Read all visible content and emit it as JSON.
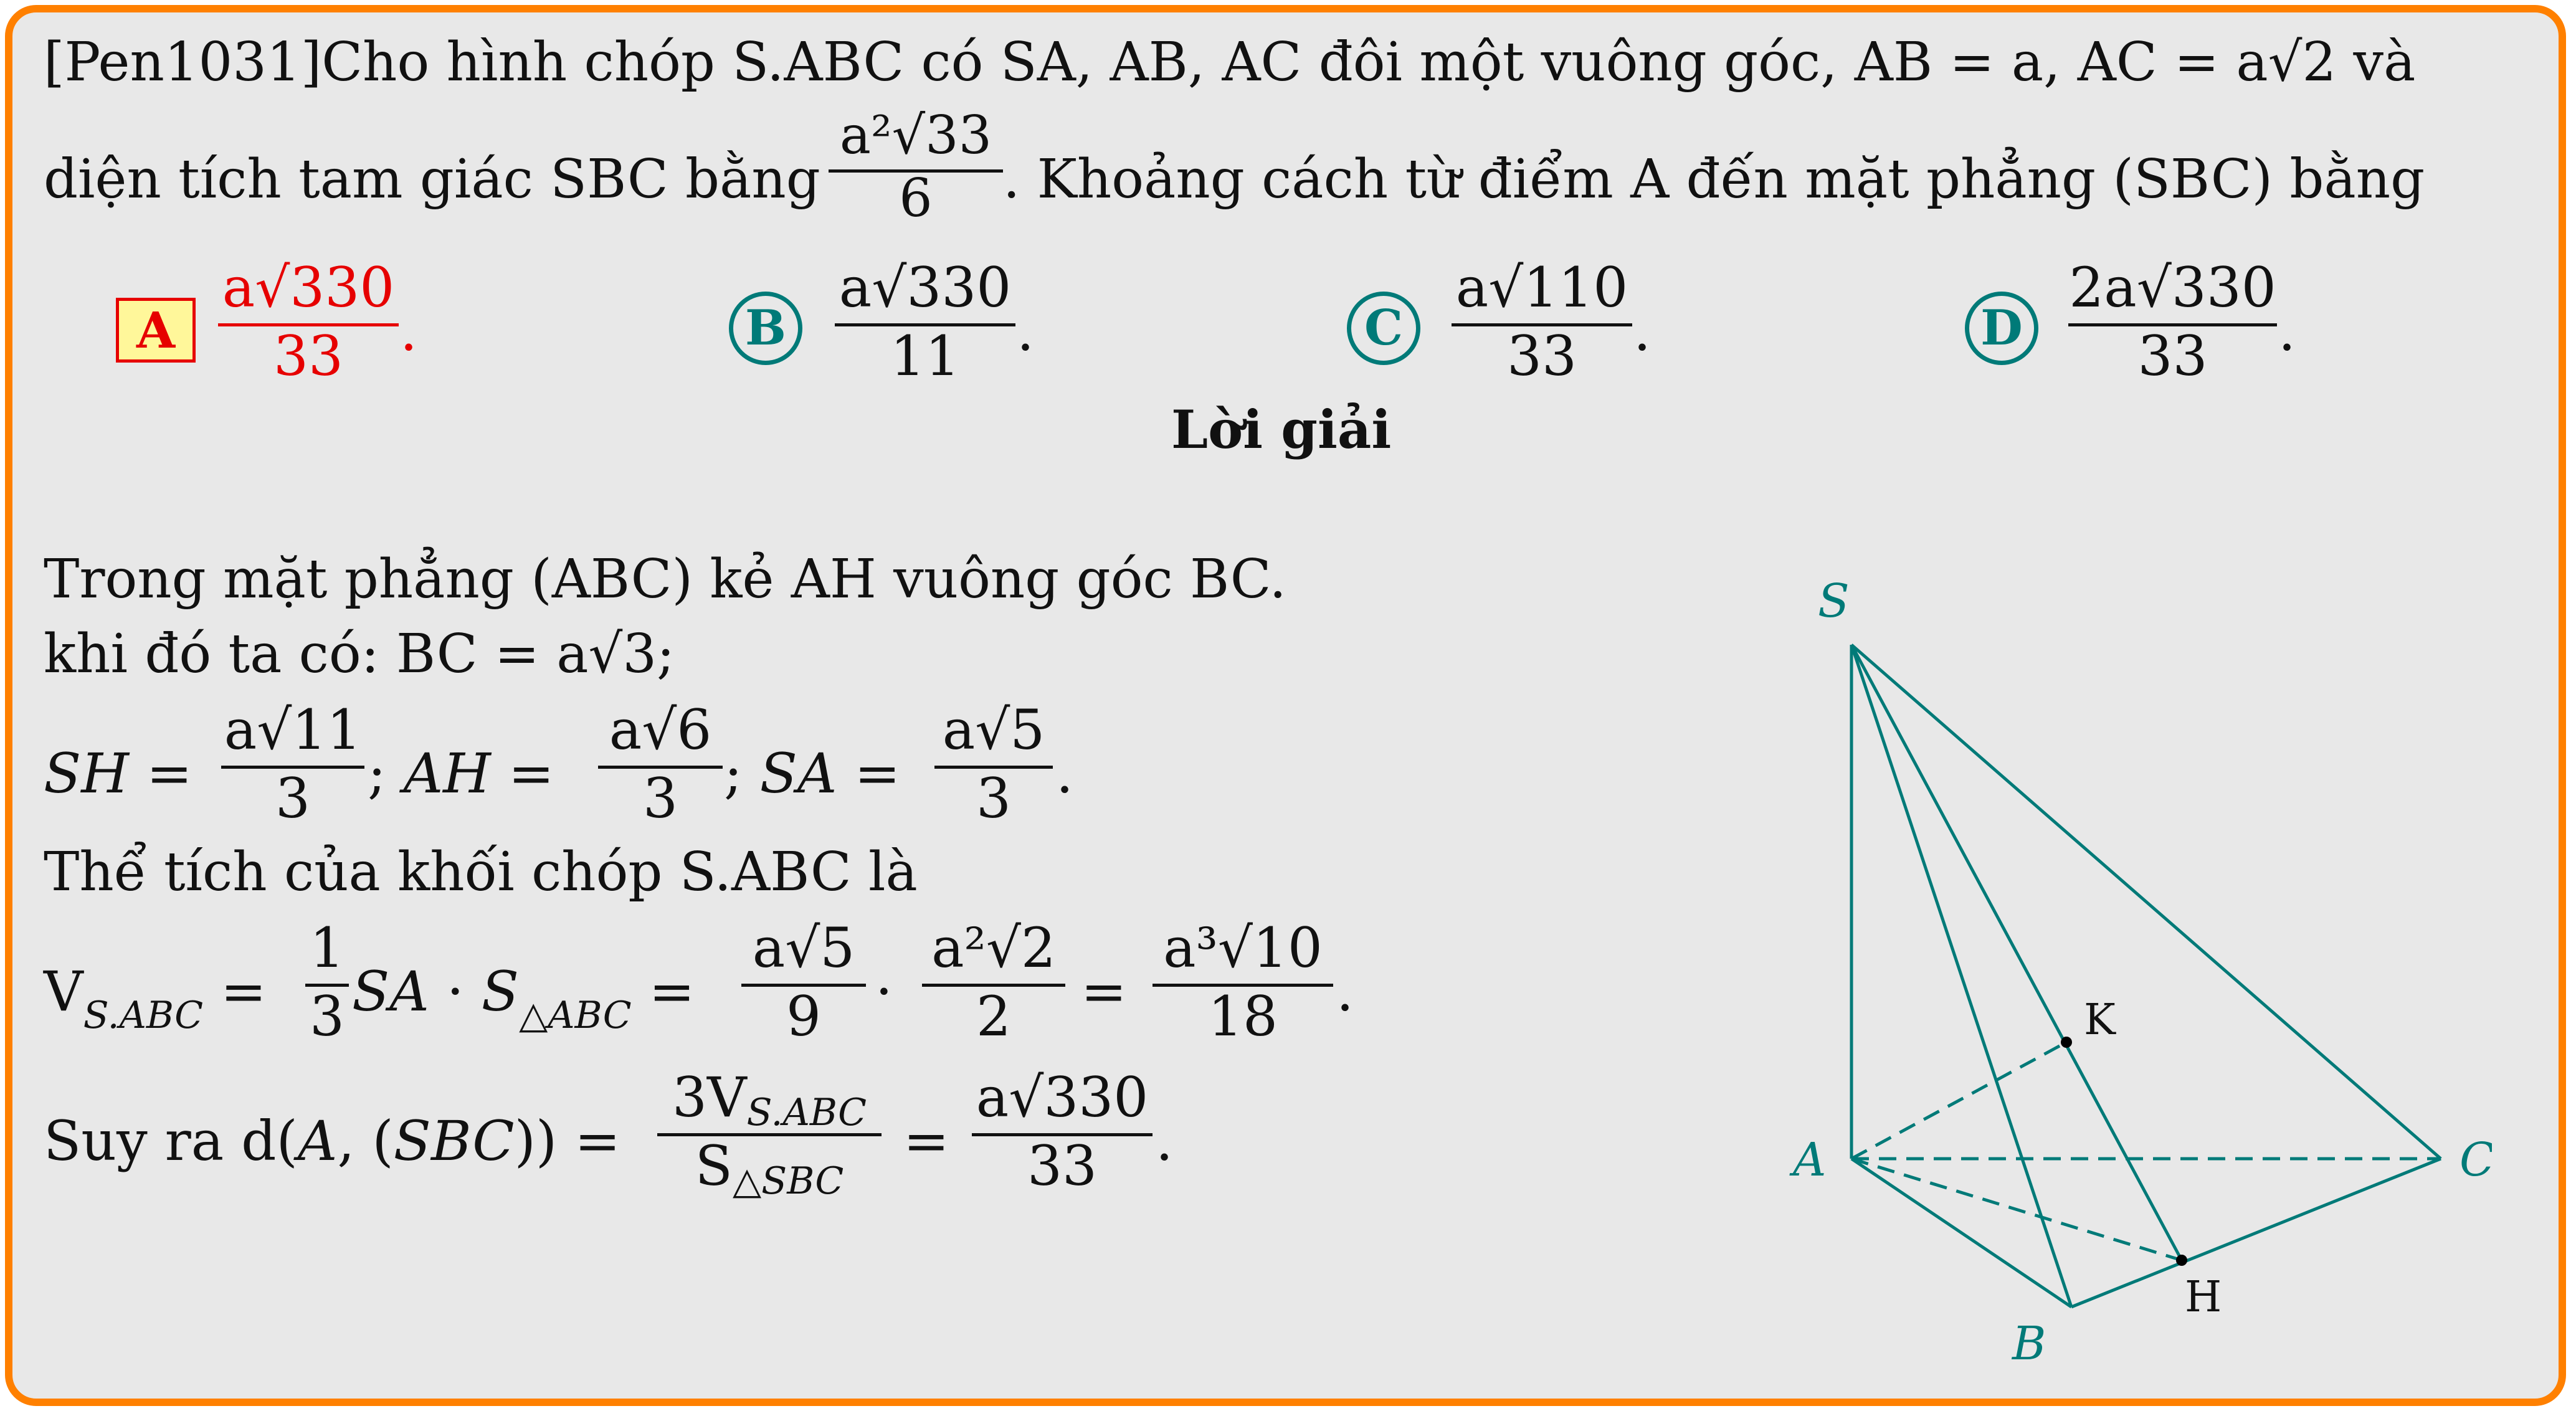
{
  "problem": {
    "line1": "[Pen1031]Cho hình chóp S.ABC có SA, AB, AC đôi một vuông góc, AB = a, AC = a√2 và",
    "line2_prefix": "diện tích tam giác SBC bằng",
    "area_num": "a²√33",
    "area_den": "6",
    "line2_suffix": ". Khoảng cách từ điểm A đến mặt phẳng (SBC) bằng"
  },
  "options": [
    {
      "letter": "A",
      "num": "a√330",
      "den": "33",
      "correct": true
    },
    {
      "letter": "B",
      "num": "a√330",
      "den": "11",
      "correct": false
    },
    {
      "letter": "C",
      "num": "a√110",
      "den": "33",
      "correct": false
    },
    {
      "letter": "D",
      "num": "2a√330",
      "den": "33",
      "correct": false
    }
  ],
  "solution": {
    "heading": "Lời giải",
    "line1": "Trong mặt phẳng (ABC) kẻ AH vuông góc BC.",
    "line2": "khi đó ta có: BC = a√3;",
    "line3": "SH = a√11/3; AH = a√6/3; SA = a√5/3.",
    "line4": "Thể tích của khối chóp S.ABC là",
    "line5": "V_S.ABC = 1/3 SA · S_△ABC = a√5/9 · a²√2/2 = a³√10/18.",
    "line6": "Suy ra d(A,(SBC)) = 3V_S.ABC / S_△SBC = a√330/33."
  },
  "figure": {
    "labels": {
      "S": "S",
      "A": "A",
      "B": "B",
      "C": "C",
      "H": "H",
      "K": "K"
    },
    "color": "#007a78"
  },
  "colors": {
    "border": "#ff8000",
    "background": "#e8e8e8",
    "correct": "#e60000",
    "accent": "#007a78"
  }
}
